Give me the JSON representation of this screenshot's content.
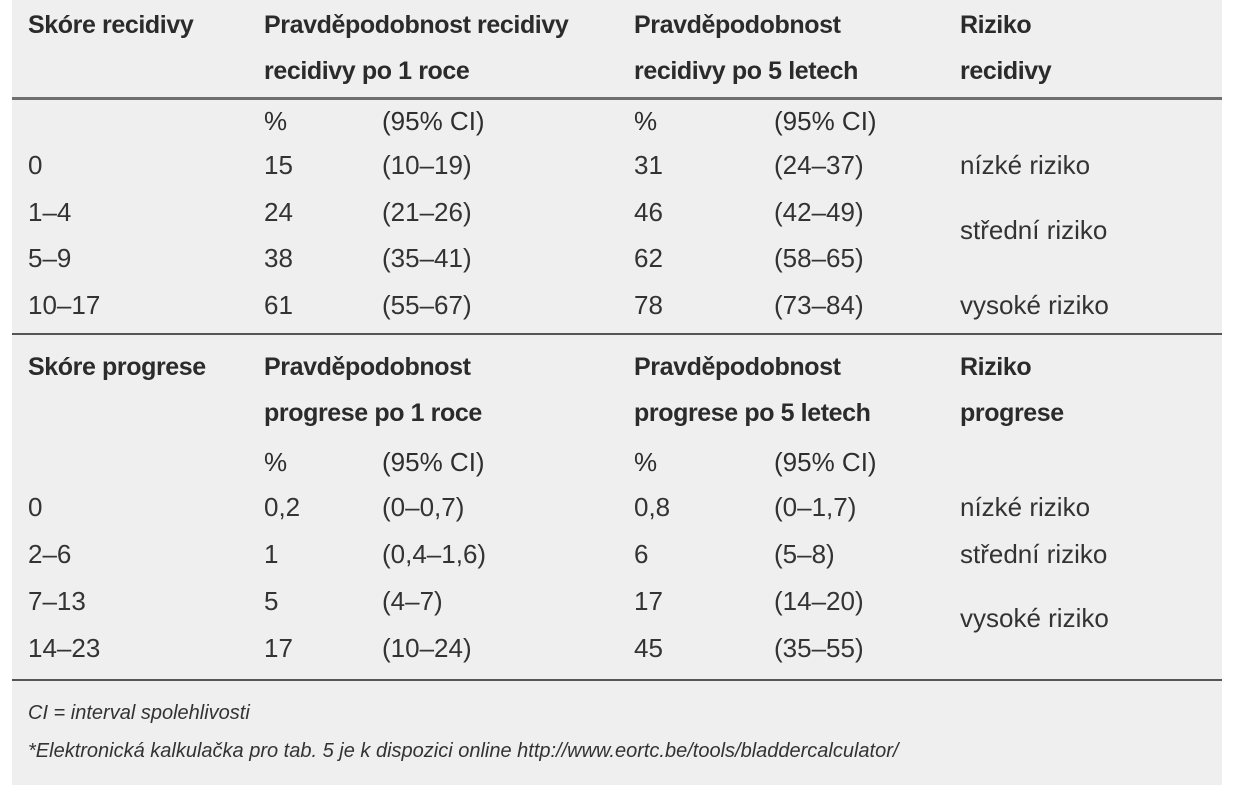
{
  "recurrence": {
    "headers": {
      "score": "Skóre recidivy",
      "p1_line1": "Pravděpodobnost recidivy",
      "p1_line2": "recidivy po 1 roce",
      "p5_line1": "Pravděpodobnost",
      "p5_line2": "recidivy po 5 letech",
      "risk_line1": "Riziko",
      "risk_line2": "recidivy"
    },
    "subheaders": {
      "pct1": "%",
      "ci1": "(95% CI)",
      "pct5": "%",
      "ci5": "(95% CI)"
    },
    "rows": [
      {
        "score": "0",
        "p1": "15",
        "ci1": "(10–19)",
        "p5": "31",
        "ci5": "(24–37)"
      },
      {
        "score": "1–4",
        "p1": "24",
        "ci1": "(21–26)",
        "p5": "46",
        "ci5": "(42–49)"
      },
      {
        "score": "5–9",
        "p1": "38",
        "ci1": "(35–41)",
        "p5": "62",
        "ci5": "(58–65)"
      },
      {
        "score": "10–17",
        "p1": "61",
        "ci1": "(55–67)",
        "p5": "78",
        "ci5": "(73–84)"
      }
    ],
    "risk_labels": {
      "low": "nízké riziko",
      "mid": "střední riziko",
      "high": "vysoké riziko"
    }
  },
  "progression": {
    "headers": {
      "score": "Skóre progrese",
      "p1_line1": "Pravděpodobnost",
      "p1_line2": "progrese po 1 roce",
      "p5_line1": "Pravděpodobnost",
      "p5_line2": "progrese po 5 letech",
      "risk_line1": "Riziko",
      "risk_line2": "progrese"
    },
    "subheaders": {
      "pct1": "%",
      "ci1": "(95% CI)",
      "pct5": "%",
      "ci5": "(95% CI)"
    },
    "rows": [
      {
        "score": "0",
        "p1": "0,2",
        "ci1": "(0–0,7)",
        "p5": "0,8",
        "ci5": "(0–1,7)"
      },
      {
        "score": "2–6",
        "p1": "1",
        "ci1": "(0,4–1,6)",
        "p5": "6",
        "ci5": "(5–8)"
      },
      {
        "score": "7–13",
        "p1": "5",
        "ci1": "(4–7)",
        "p5": "17",
        "ci5": "(14–20)"
      },
      {
        "score": "14–23",
        "p1": "17",
        "ci1": "(10–24)",
        "p5": "45",
        "ci5": "(35–55)"
      }
    ],
    "risk_labels": {
      "low": "nízké riziko",
      "mid": "střední riziko",
      "high": "vysoké riziko"
    }
  },
  "footnotes": {
    "ci": "CI = interval spolehlivosti",
    "calculator": "*Elektronická kalkulačka pro tab. 5 je k dispozici online http://www.eortc.be/tools/bladdercalculator/"
  }
}
